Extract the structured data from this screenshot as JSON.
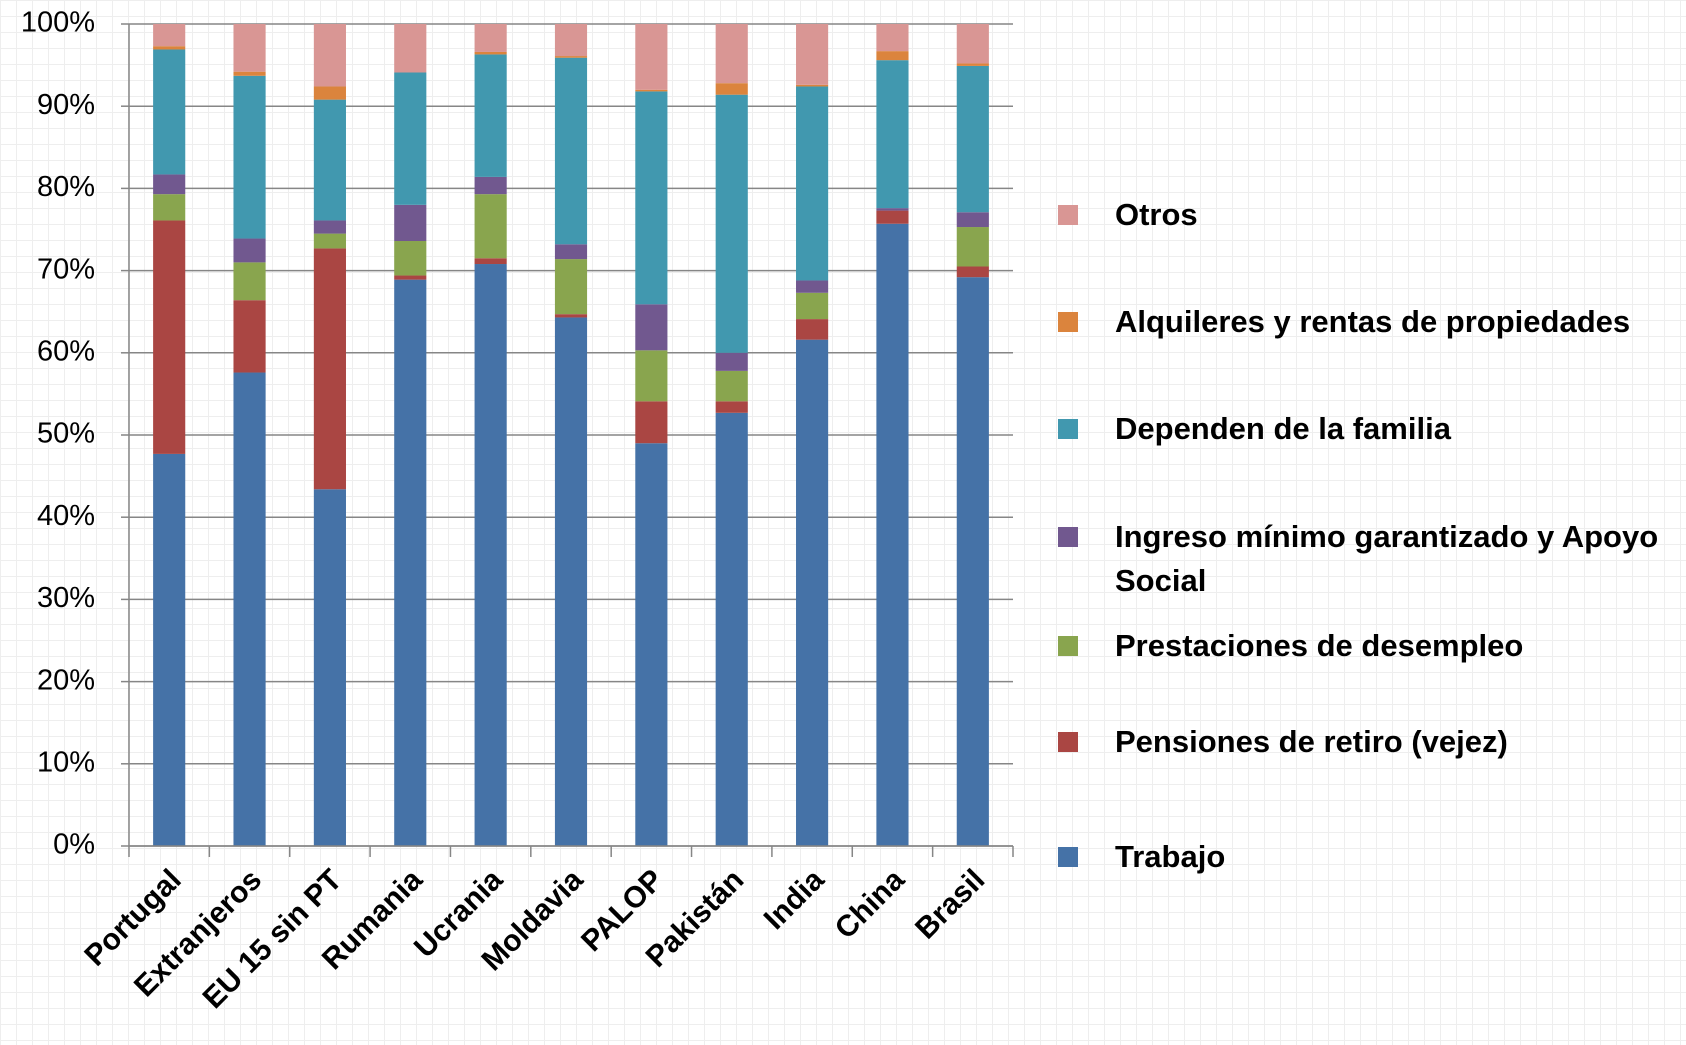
{
  "chart_data": {
    "type": "stacked_bar",
    "categories": [
      "Portugal",
      "Extranjeros",
      "EU 15 sin PT",
      "Rumania",
      "Ucrania",
      "Moldavia",
      "PALOP",
      "Pakistán",
      "India",
      "China",
      "Brasil"
    ],
    "series": [
      {
        "name": "Trabajo",
        "color": "#4572a7",
        "values": [
          47.7,
          57.6,
          43.4,
          68.9,
          70.8,
          64.3,
          49.0,
          52.7,
          61.6,
          75.7,
          69.2
        ]
      },
      {
        "name": "Pensiones de retiro (vejez)",
        "color": "#aa4643",
        "values": [
          28.4,
          8.8,
          29.3,
          0.5,
          0.7,
          0.4,
          5.1,
          1.4,
          2.5,
          1.6,
          1.3
        ]
      },
      {
        "name": "Prestaciones de desempleo",
        "color": "#89a54e",
        "values": [
          3.2,
          4.6,
          1.8,
          4.2,
          7.8,
          6.7,
          6.2,
          3.7,
          3.2,
          0,
          4.8
        ]
      },
      {
        "name": "Ingreso mínimo garantizado y Apoyo Social",
        "color": "#71588f",
        "values": [
          2.4,
          2.9,
          1.6,
          4.4,
          2.1,
          1.8,
          5.6,
          2.2,
          1.5,
          0.3,
          1.8
        ]
      },
      {
        "name": "Dependen de la familia",
        "color": "#4198af",
        "values": [
          15.2,
          19.8,
          14.7,
          16.1,
          14.9,
          22.7,
          25.9,
          31.4,
          23.6,
          18.0,
          17.8
        ]
      },
      {
        "name": "Alquileres y rentas de propiedades",
        "color": "#db843d",
        "values": [
          0.4,
          0.5,
          1.6,
          0,
          0.3,
          0.2,
          0.2,
          1.4,
          0.2,
          1.1,
          0.3
        ]
      },
      {
        "name": "Otros",
        "color": "#d99694",
        "values": [
          2.7,
          5.8,
          7.6,
          5.9,
          3.4,
          3.9,
          8.0,
          7.2,
          7.4,
          3.3,
          4.8
        ]
      }
    ],
    "ylim": [
      0,
      100
    ],
    "yticks": [
      {
        "value": 0,
        "label": "0%"
      },
      {
        "value": 10,
        "label": "10%"
      },
      {
        "value": 20,
        "label": "20%"
      },
      {
        "value": 30,
        "label": "30%"
      },
      {
        "value": 40,
        "label": "40%"
      },
      {
        "value": 50,
        "label": "50%"
      },
      {
        "value": 60,
        "label": "60%"
      },
      {
        "value": 70,
        "label": "70%"
      },
      {
        "value": 80,
        "label": "80%"
      },
      {
        "value": 90,
        "label": "90%"
      },
      {
        "value": 100,
        "label": "100%"
      }
    ],
    "grid": true,
    "legend": "right"
  }
}
